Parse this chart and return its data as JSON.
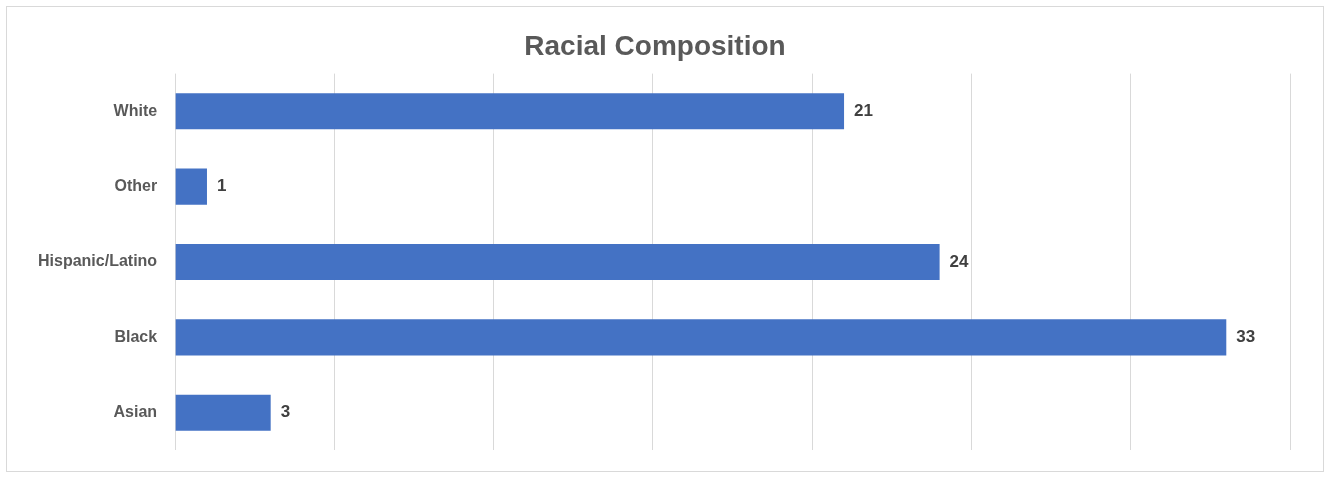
{
  "chart_data": {
    "type": "bar",
    "orientation": "horizontal",
    "title": "Racial Composition",
    "categories": [
      "White",
      "Other",
      "Hispanic/Latino",
      "Black",
      "Asian"
    ],
    "values": [
      21,
      1,
      24,
      33,
      3
    ],
    "color": "#4472c4",
    "xlim": [
      0,
      35
    ],
    "xticks": [
      {
        "value": 0,
        "label": null
      },
      {
        "value": 5,
        "label": null
      },
      {
        "value": 10,
        "label": null
      },
      {
        "value": 15,
        "label": null
      },
      {
        "value": 20,
        "label": null
      },
      {
        "value": 25,
        "label": null
      },
      {
        "value": 30,
        "label": null
      },
      {
        "value": 35,
        "label": null
      }
    ],
    "grid": "x",
    "legend": false,
    "tick_labels": "y",
    "data_labels": true
  }
}
